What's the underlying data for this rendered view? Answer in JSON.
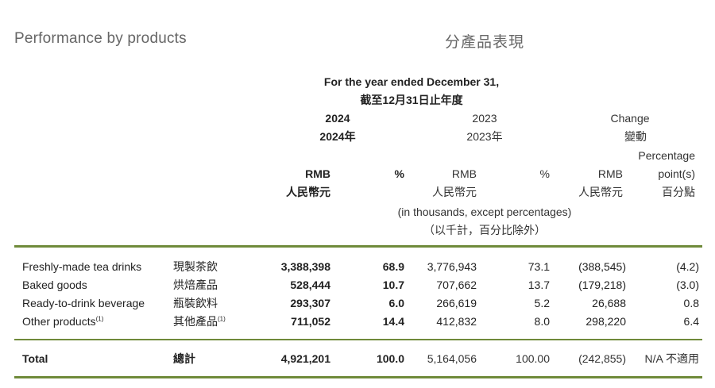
{
  "titles": {
    "en": "Performance by products",
    "zh": "分產品表現"
  },
  "header": {
    "period_en": "For the year ended December 31,",
    "period_zh": "截至12月31日止年度",
    "y2024_en": "2024",
    "y2024_zh": "2024年",
    "y2023_en": "2023",
    "y2023_zh": "2023年",
    "change_en": "Change",
    "change_zh": "變動",
    "pp_line1": "Percentage",
    "pp_line2": "point(s)",
    "pp_zh": "百分點",
    "rmb_en": "RMB",
    "rmb_zh": "人民幣元",
    "pct": "%",
    "units_en": "(in thousands, except percentages)",
    "units_zh": "（以千計，百分比除外）"
  },
  "rows": [
    {
      "en": "Freshly-made tea drinks",
      "zh": "現製茶飲",
      "rmb2024": "3,388,398",
      "pct2024": "68.9",
      "rmb2023": "3,776,943",
      "pct2023": "73.1",
      "change": "(388,545)",
      "pp": "(4.2)"
    },
    {
      "en": "Baked goods",
      "zh": "烘焙產品",
      "rmb2024": "528,444",
      "pct2024": "10.7",
      "rmb2023": "707,662",
      "pct2023": "13.7",
      "change": "(179,218)",
      "pp": "(3.0)"
    },
    {
      "en": "Ready-to-drink beverage",
      "zh": "瓶裝飲料",
      "rmb2024": "293,307",
      "pct2024": "6.0",
      "rmb2023": "266,619",
      "pct2023": "5.2",
      "change": "26,688",
      "pp": "0.8"
    },
    {
      "en": "Other products",
      "en_note": "(1)",
      "zh": "其他產品",
      "zh_note": "(1)",
      "rmb2024": "711,052",
      "pct2024": "14.4",
      "rmb2023": "412,832",
      "pct2023": "8.0",
      "change": "298,220",
      "pp": "6.4"
    }
  ],
  "total": {
    "en": "Total",
    "zh": "總計",
    "rmb2024": "4,921,201",
    "pct2024": "100.0",
    "rmb2023": "5,164,056",
    "pct2023": "100.00",
    "change": "(242,855)",
    "pp": "N/A 不適用"
  },
  "colors": {
    "rule": "#6f8a3a",
    "title": "#666666"
  }
}
